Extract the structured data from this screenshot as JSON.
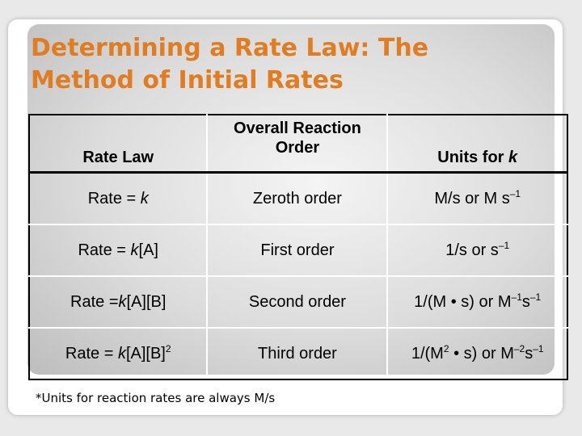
{
  "slide": {
    "title_line1": "Determining a Rate Law: The",
    "title_line2": "Method of Initial Rates",
    "colors": {
      "title": "#e07d22"
    }
  },
  "table": {
    "headers": {
      "rate_law": "Rate Law",
      "order_line1": "Overall Reaction",
      "order_line2": "Order",
      "units_prefix": "Units for ",
      "units_var": "k"
    },
    "rows": [
      {
        "law": {
          "pre": "Rate = ",
          "k": "k",
          "post": "",
          "sup": ""
        },
        "order": "Zeroth order",
        "units": {
          "t1": "M/s or M s",
          "s1": "–1",
          "t2": "",
          "s2": "",
          "t3": "",
          "s3": ""
        }
      },
      {
        "law": {
          "pre": "Rate = ",
          "k": "k",
          "post": "[A]",
          "sup": ""
        },
        "order": "First order",
        "units": {
          "t1": "1/s or s",
          "s1": "–1",
          "t2": "",
          "s2": "",
          "t3": "",
          "s3": ""
        }
      },
      {
        "law": {
          "pre": "Rate =",
          "k": "k",
          "post": "[A][B]",
          "sup": ""
        },
        "order": "Second order",
        "units": {
          "t1": "1/(M • s) or M",
          "s1": "–1",
          "t2": "s",
          "s2": "–1",
          "t3": "",
          "s3": ""
        }
      },
      {
        "law": {
          "pre": "Rate = ",
          "k": "k",
          "post": "[A][B]",
          "sup": "2"
        },
        "order": "Third order",
        "units": {
          "t1": "1/(M",
          "s1": "2",
          "t2": " • s) or M",
          "s2": "–2",
          "t3": "s",
          "s3": "–1"
        }
      }
    ]
  },
  "footnote": "*Units for reaction rates are always M/s"
}
